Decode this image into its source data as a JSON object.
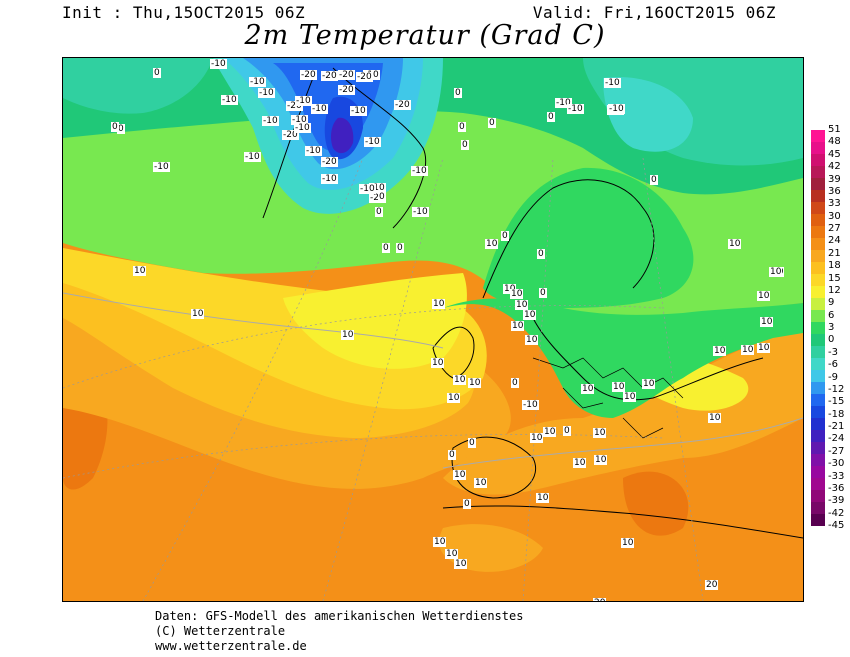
{
  "header": {
    "init": "Init : Thu,15OCT2015 06Z",
    "valid": "Valid: Fri,16OCT2015 06Z",
    "title": "2m Temperatur (Grad C)"
  },
  "legend": {
    "ticks": [
      "51",
      "48",
      "45",
      "42",
      "39",
      "36",
      "33",
      "30",
      "27",
      "24",
      "21",
      "18",
      "15",
      "12",
      "9",
      "6",
      "3",
      "0",
      "-3",
      "-6",
      "-9",
      "-12",
      "-15",
      "-18",
      "-21",
      "-24",
      "-27",
      "-30",
      "-33",
      "-36",
      "-39",
      "-42",
      "-45"
    ],
    "colors": [
      "#ff1493",
      "#e8108a",
      "#d01070",
      "#b81858",
      "#a0203c",
      "#b83020",
      "#d04818",
      "#e06010",
      "#ec7810",
      "#f49018",
      "#f8a820",
      "#fcc020",
      "#fcd828",
      "#f8f030",
      "#c8f040",
      "#78e850",
      "#30d860",
      "#20c878",
      "#30d0a0",
      "#40d8c8",
      "#40c8e8",
      "#3098f0",
      "#2068f0",
      "#1848e0",
      "#2030d0",
      "#4020c0",
      "#6018b0",
      "#8010a8",
      "#9808a0",
      "#a00890",
      "#900878",
      "#780868",
      "#580050"
    ]
  },
  "labels": [
    {
      "t": "-10"
    },
    {
      "t": "-10"
    },
    {
      "t": "-20"
    },
    {
      "t": "-20"
    },
    {
      "t": "-20"
    },
    {
      "t": "-10"
    },
    {
      "t": "-10"
    },
    {
      "t": "-10"
    },
    {
      "t": "-20"
    },
    {
      "t": "-20"
    },
    {
      "t": "-20"
    },
    {
      "t": "-10"
    },
    {
      "t": "-10"
    },
    {
      "t": "-20"
    },
    {
      "t": "-10"
    },
    {
      "t": "-10"
    },
    {
      "t": "-10"
    },
    {
      "t": "-20"
    },
    {
      "t": "-10"
    },
    {
      "t": "-10"
    },
    {
      "t": "-20"
    },
    {
      "t": "-10"
    },
    {
      "t": "-10"
    },
    {
      "t": "-10"
    },
    {
      "t": "-20"
    },
    {
      "t": "-10"
    },
    {
      "t": "-10"
    },
    {
      "t": "-10"
    },
    {
      "t": "-10"
    },
    {
      "t": "-10"
    },
    {
      "t": "0"
    },
    {
      "t": "0"
    },
    {
      "t": "0"
    },
    {
      "t": "0"
    },
    {
      "t": "0"
    },
    {
      "t": "0"
    },
    {
      "t": "0"
    },
    {
      "t": "0"
    },
    {
      "t": "-10"
    },
    {
      "t": "-10"
    },
    {
      "t": "-10"
    },
    {
      "t": "-10"
    },
    {
      "t": "-10"
    },
    {
      "t": "0"
    },
    {
      "t": "0"
    },
    {
      "t": "0"
    },
    {
      "t": "0"
    },
    {
      "t": "0"
    },
    {
      "t": "10"
    },
    {
      "t": "0"
    },
    {
      "t": "0"
    },
    {
      "t": "0"
    },
    {
      "t": "10"
    },
    {
      "t": "10"
    },
    {
      "t": "10"
    },
    {
      "t": "10"
    },
    {
      "t": "10"
    },
    {
      "t": "10"
    },
    {
      "t": "10"
    },
    {
      "t": "10"
    },
    {
      "t": "0"
    },
    {
      "t": "10"
    },
    {
      "t": "0"
    },
    {
      "t": "10"
    },
    {
      "t": "10"
    },
    {
      "t": "10"
    },
    {
      "t": "10"
    },
    {
      "t": "10"
    },
    {
      "t": "10"
    },
    {
      "t": "10"
    },
    {
      "t": "10"
    },
    {
      "t": "10"
    },
    {
      "t": "10"
    },
    {
      "t": "10"
    },
    {
      "t": "10"
    },
    {
      "t": "10"
    },
    {
      "t": "10"
    },
    {
      "t": "10"
    },
    {
      "t": "10"
    },
    {
      "t": "10"
    },
    {
      "t": "10"
    },
    {
      "t": "10"
    },
    {
      "t": "10"
    },
    {
      "t": "0"
    },
    {
      "t": "10"
    },
    {
      "t": "10"
    },
    {
      "t": "10"
    },
    {
      "t": "10"
    },
    {
      "t": "10"
    },
    {
      "t": "10"
    },
    {
      "t": "10"
    },
    {
      "t": "10"
    },
    {
      "t": "10"
    },
    {
      "t": "20"
    },
    {
      "t": "20"
    },
    {
      "t": "-10"
    },
    {
      "t": "0"
    },
    {
      "t": "10"
    },
    {
      "t": "0"
    }
  ],
  "footer": {
    "line1": "Daten: GFS-Modell des amerikanischen Wetterdienstes",
    "line2": "(C) Wetterzentrale",
    "line3": "www.wetterzentrale.de"
  }
}
